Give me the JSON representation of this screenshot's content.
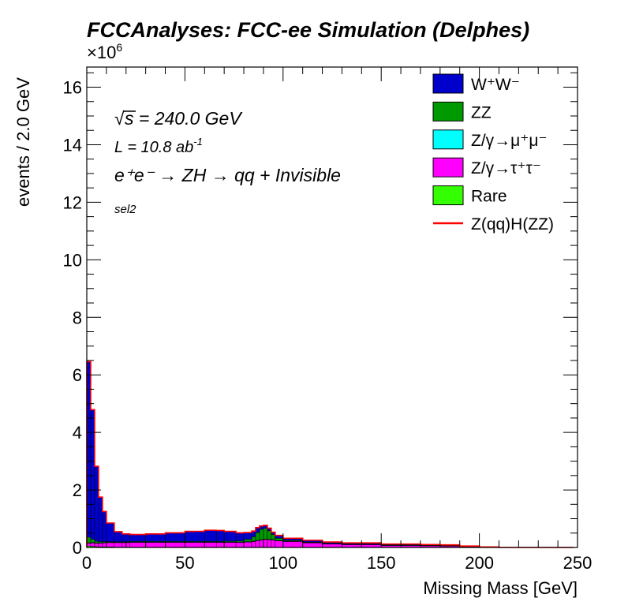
{
  "chart_data": {
    "type": "area",
    "stacked": true,
    "histogram": true,
    "title": "FCCAnalyses: FCC-ee Simulation (Delphes)",
    "xlabel": "Missing Mass [GeV]",
    "ylabel": "events / 2.0 GeV",
    "y_multiplier": "×10",
    "y_multiplier_exp": "6",
    "xlim": [
      0,
      250
    ],
    "ylim": [
      0,
      16.7
    ],
    "x_ticks": [
      "0",
      "50",
      "100",
      "150",
      "200",
      "250"
    ],
    "y_ticks": [
      "0",
      "2",
      "4",
      "6",
      "8",
      "10",
      "12",
      "14",
      "16"
    ],
    "bin_width": 2,
    "annotations": {
      "sqrt_symbol": "√",
      "sqrt_s": "s = 240.0 GeV",
      "lumi": "L = 10.8 ab",
      "lumi_exp": "-1",
      "process": "e⁺e⁻ → ZH → qq + Invisible",
      "selection": "sel2"
    },
    "legend_position": "top-right",
    "legend": [
      {
        "label": "W⁺W⁻",
        "color": "#0000cc",
        "kind": "fill"
      },
      {
        "label": "ZZ",
        "color": "#009900",
        "kind": "fill"
      },
      {
        "label": "Z/γ→μ⁺μ⁻",
        "color": "#00ffff",
        "kind": "fill"
      },
      {
        "label": "Z/γ→τ⁺τ⁻",
        "color": "#ff00ff",
        "kind": "fill"
      },
      {
        "label": "Rare",
        "color": "#33ff00",
        "kind": "fill"
      },
      {
        "label": "Z(qq)H(ZZ)",
        "color": "#ff0000",
        "kind": "line"
      }
    ],
    "stack_order_bottom_to_top": [
      "Rare",
      "Z/γ→τ⁺τ⁻",
      "Z/γ→μ⁺μ⁻",
      "ZZ",
      "W⁺W⁻"
    ],
    "bins_x": [
      0,
      2,
      4,
      6,
      8,
      10,
      14,
      18,
      22,
      30,
      40,
      50,
      60,
      66,
      70,
      76,
      80,
      84,
      86,
      88,
      90,
      92,
      94,
      96,
      100,
      110,
      120,
      130,
      150,
      170,
      180,
      190,
      200,
      210,
      230,
      248
    ],
    "series": [
      {
        "name": "Rare",
        "values": [
          0.05,
          0.04,
          0.03,
          0.02,
          0.02,
          0.02,
          0.01,
          0.01,
          0.01,
          0.01,
          0.01,
          0.01,
          0.01,
          0.01,
          0.01,
          0.01,
          0.01,
          0.01,
          0.01,
          0.01,
          0.01,
          0.01,
          0.01,
          0.01,
          0.01,
          0.01,
          0.01,
          0.01,
          0.01,
          0.01,
          0.01,
          0.01,
          0.0,
          0.0,
          0.0
        ]
      },
      {
        "name": "Z/γ→τ⁺τ⁻",
        "values": [
          0.1,
          0.12,
          0.12,
          0.13,
          0.14,
          0.15,
          0.16,
          0.16,
          0.17,
          0.17,
          0.17,
          0.17,
          0.17,
          0.17,
          0.17,
          0.17,
          0.18,
          0.2,
          0.23,
          0.25,
          0.27,
          0.26,
          0.25,
          0.22,
          0.2,
          0.15,
          0.11,
          0.09,
          0.06,
          0.05,
          0.04,
          0.02,
          0.01,
          0.0,
          0.0
        ]
      },
      {
        "name": "Z/γ→μ⁺μ⁻",
        "values": [
          0.01,
          0.01,
          0.01,
          0.01,
          0.01,
          0.01,
          0.01,
          0.01,
          0.01,
          0.01,
          0.01,
          0.01,
          0.01,
          0.01,
          0.01,
          0.01,
          0.01,
          0.01,
          0.01,
          0.01,
          0.01,
          0.01,
          0.01,
          0.01,
          0.01,
          0.01,
          0.01,
          0.01,
          0.01,
          0.01,
          0.01,
          0.01,
          0.0,
          0.0,
          0.0
        ]
      },
      {
        "name": "ZZ",
        "values": [
          0.2,
          0.12,
          0.06,
          0.04,
          0.03,
          0.02,
          0.02,
          0.02,
          0.02,
          0.02,
          0.02,
          0.02,
          0.02,
          0.02,
          0.03,
          0.04,
          0.08,
          0.15,
          0.27,
          0.36,
          0.38,
          0.3,
          0.18,
          0.08,
          0.03,
          0.02,
          0.01,
          0.01,
          0.01,
          0.01,
          0.01,
          0.0,
          0.0,
          0.0,
          0.0
        ]
      },
      {
        "name": "W⁺W⁻",
        "values": [
          6.1,
          4.5,
          2.6,
          1.55,
          1.05,
          0.65,
          0.35,
          0.27,
          0.24,
          0.26,
          0.3,
          0.35,
          0.39,
          0.38,
          0.34,
          0.28,
          0.24,
          0.2,
          0.17,
          0.12,
          0.1,
          0.09,
          0.08,
          0.1,
          0.07,
          0.06,
          0.05,
          0.04,
          0.03,
          0.02,
          0.02,
          0.01,
          0.01,
          0.0,
          0.0
        ]
      },
      {
        "name": "Z(qq)H(ZZ)",
        "line": true,
        "description_of_values": "stack total",
        "values": [
          6.46,
          4.79,
          2.82,
          1.75,
          1.25,
          0.85,
          0.55,
          0.47,
          0.45,
          0.47,
          0.51,
          0.56,
          0.6,
          0.59,
          0.56,
          0.51,
          0.52,
          0.57,
          0.69,
          0.75,
          0.77,
          0.67,
          0.53,
          0.42,
          0.32,
          0.25,
          0.19,
          0.16,
          0.12,
          0.1,
          0.09,
          0.05,
          0.02,
          0.0,
          0.0
        ]
      }
    ],
    "colors": {
      "frame": "#000000",
      "background": "#ffffff"
    }
  }
}
